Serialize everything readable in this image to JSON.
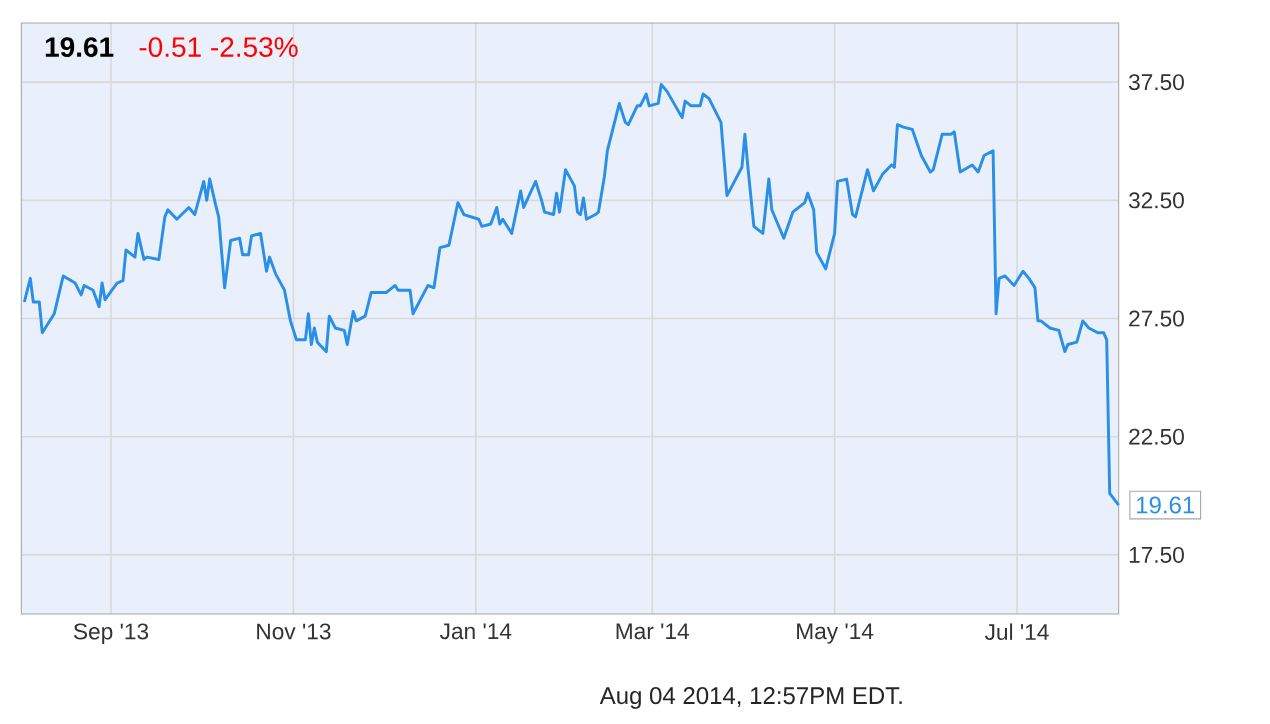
{
  "chart_data": {
    "type": "line",
    "title": "19.61",
    "subtitle": "-0.51  -2.53%",
    "x": [
      "2013-08-03",
      "2013-08-05",
      "2013-08-06",
      "2013-08-08",
      "2013-08-09",
      "2013-08-13",
      "2013-08-16",
      "2013-08-20",
      "2013-08-22",
      "2013-08-23",
      "2013-08-26",
      "2013-08-28",
      "2013-08-29",
      "2013-08-30",
      "2013-09-03",
      "2013-09-05",
      "2013-09-06",
      "2013-09-09",
      "2013-09-10",
      "2013-09-12",
      "2013-09-13",
      "2013-09-17",
      "2013-09-19",
      "2013-09-20",
      "2013-09-23",
      "2013-09-27",
      "2013-09-29",
      "2013-10-02",
      "2013-10-03",
      "2013-10-04",
      "2013-10-06",
      "2013-10-07",
      "2013-10-09",
      "2013-10-11",
      "2013-10-14",
      "2013-10-15",
      "2013-10-17",
      "2013-10-18",
      "2013-10-21",
      "2013-10-23",
      "2013-10-24",
      "2013-10-26",
      "2013-10-29",
      "2013-10-31",
      "2013-11-02",
      "2013-11-05",
      "2013-11-06",
      "2013-11-07",
      "2013-11-08",
      "2013-11-09",
      "2013-11-12",
      "2013-11-13",
      "2013-11-15",
      "2013-11-18",
      "2013-11-19",
      "2013-11-21",
      "2013-11-22",
      "2013-11-25",
      "2013-11-27",
      "2013-12-02",
      "2013-12-05",
      "2013-12-06",
      "2013-12-10",
      "2013-12-11",
      "2013-12-16",
      "2013-12-18",
      "2013-12-20",
      "2013-12-23",
      "2013-12-26",
      "2013-12-28",
      "2014-01-02",
      "2014-01-03",
      "2014-01-06",
      "2014-01-08",
      "2014-01-09",
      "2014-01-10",
      "2014-01-13",
      "2014-01-16",
      "2014-01-17",
      "2014-01-21",
      "2014-01-23",
      "2014-01-24",
      "2014-01-27",
      "2014-01-28",
      "2014-01-29",
      "2014-01-31",
      "2014-02-03",
      "2014-02-04",
      "2014-02-05",
      "2014-02-06",
      "2014-02-07",
      "2014-02-10",
      "2014-02-11",
      "2014-02-13",
      "2014-02-14",
      "2014-02-18",
      "2014-02-20",
      "2014-02-21",
      "2014-02-24",
      "2014-02-25",
      "2014-02-27",
      "2014-02-28",
      "2014-03-03",
      "2014-03-04",
      "2014-03-06",
      "2014-03-11",
      "2014-03-12",
      "2014-03-14",
      "2014-03-17",
      "2014-03-18",
      "2014-03-20",
      "2014-03-24",
      "2014-03-26",
      "2014-03-31",
      "2014-04-01",
      "2014-04-02",
      "2014-04-04",
      "2014-04-07",
      "2014-04-09",
      "2014-04-10",
      "2014-04-12",
      "2014-04-14",
      "2014-04-17",
      "2014-04-21",
      "2014-04-22",
      "2014-04-24",
      "2014-04-25",
      "2014-04-28",
      "2014-05-01",
      "2014-05-02",
      "2014-05-05",
      "2014-05-07",
      "2014-05-08",
      "2014-05-12",
      "2014-05-14",
      "2014-05-17",
      "2014-05-20",
      "2014-05-21",
      "2014-05-22",
      "2014-05-24",
      "2014-05-27",
      "2014-05-30",
      "2014-06-02",
      "2014-06-03",
      "2014-06-06",
      "2014-06-09",
      "2014-06-10",
      "2014-06-12",
      "2014-06-16",
      "2014-06-18",
      "2014-06-20",
      "2014-06-23",
      "2014-06-24",
      "2014-06-25",
      "2014-06-27",
      "2014-06-30",
      "2014-07-03",
      "2014-07-05",
      "2014-07-07",
      "2014-07-08",
      "2014-07-09",
      "2014-07-12",
      "2014-07-15",
      "2014-07-17",
      "2014-07-18",
      "2014-07-21",
      "2014-07-23",
      "2014-07-25",
      "2014-07-28",
      "2014-07-30",
      "2014-07-31",
      "2014-08-01",
      "2014-08-04"
    ],
    "series": [
      {
        "color": "#2a8fe6",
        "values": [
          28.2,
          29.2,
          28.2,
          28.2,
          26.9,
          27.7,
          29.3,
          29.0,
          28.5,
          28.9,
          28.7,
          28.0,
          29.0,
          28.3,
          29.0,
          29.1,
          30.4,
          30.1,
          31.1,
          30.0,
          30.1,
          30.0,
          31.8,
          32.1,
          31.7,
          32.2,
          31.9,
          33.3,
          32.5,
          33.4,
          32.3,
          31.8,
          28.8,
          30.8,
          30.9,
          30.2,
          30.2,
          31.0,
          31.1,
          29.5,
          30.1,
          29.4,
          28.7,
          27.4,
          26.6,
          26.6,
          27.7,
          26.4,
          27.1,
          26.5,
          26.1,
          27.6,
          27.1,
          27.0,
          26.4,
          27.8,
          27.4,
          27.6,
          28.6,
          28.6,
          28.9,
          28.7,
          28.7,
          27.7,
          28.9,
          28.8,
          30.5,
          30.6,
          32.4,
          31.9,
          31.7,
          31.4,
          31.5,
          32.2,
          31.5,
          31.7,
          31.1,
          32.9,
          32.2,
          33.3,
          32.5,
          32.0,
          31.9,
          32.8,
          32.0,
          33.8,
          33.1,
          32.0,
          31.9,
          32.6,
          31.7,
          31.9,
          32.0,
          33.5,
          34.6,
          36.6,
          35.8,
          35.7,
          36.5,
          36.5,
          37.0,
          36.5,
          36.6,
          37.4,
          37.1,
          36.0,
          36.7,
          36.5,
          36.5,
          37.0,
          36.8,
          35.8,
          32.7,
          33.9,
          35.3,
          33.9,
          31.4,
          31.1,
          33.4,
          32.1,
          31.5,
          30.9,
          32.0,
          32.4,
          32.8,
          32.1,
          30.3,
          29.6,
          31.1,
          33.3,
          33.4,
          31.9,
          31.8,
          33.8,
          32.9,
          33.6,
          34.0,
          33.9,
          35.7,
          35.6,
          35.5,
          34.4,
          33.7,
          33.8,
          35.3,
          35.3,
          35.4,
          33.7,
          34.0,
          33.7,
          34.4,
          34.6,
          27.7,
          29.2,
          29.3,
          28.9,
          29.5,
          29.2,
          28.8,
          27.4,
          27.4,
          27.1,
          27.0,
          26.1,
          26.4,
          26.5,
          27.4,
          27.1,
          26.9,
          26.9,
          26.6,
          20.1,
          19.61
        ]
      }
    ],
    "xlim": [
      "2013-08-02",
      "2014-08-04"
    ],
    "xticks": [
      {
        "value": "2013-09-01",
        "label": "Sep '13"
      },
      {
        "value": "2013-11-01",
        "label": "Nov '13"
      },
      {
        "value": "2014-01-01",
        "label": "Jan '14"
      },
      {
        "value": "2014-03-01",
        "label": "Mar '14"
      },
      {
        "value": "2014-05-01",
        "label": "May '14"
      },
      {
        "value": "2014-07-01",
        "label": "Jul '14"
      }
    ],
    "ylim": [
      15,
      40
    ],
    "yticks": [
      {
        "value": 17.5,
        "label": "17.50"
      },
      {
        "value": 22.5,
        "label": "22.50"
      },
      {
        "value": 27.5,
        "label": "27.50"
      },
      {
        "value": 32.5,
        "label": "32.50"
      },
      {
        "value": 37.5,
        "label": "37.50"
      }
    ],
    "grid": true,
    "annotations": [
      {
        "text": "19.61",
        "x": "2014-08-04",
        "y": 19.61
      },
      "Aug 04 2014, 12:57PM EDT."
    ]
  }
}
